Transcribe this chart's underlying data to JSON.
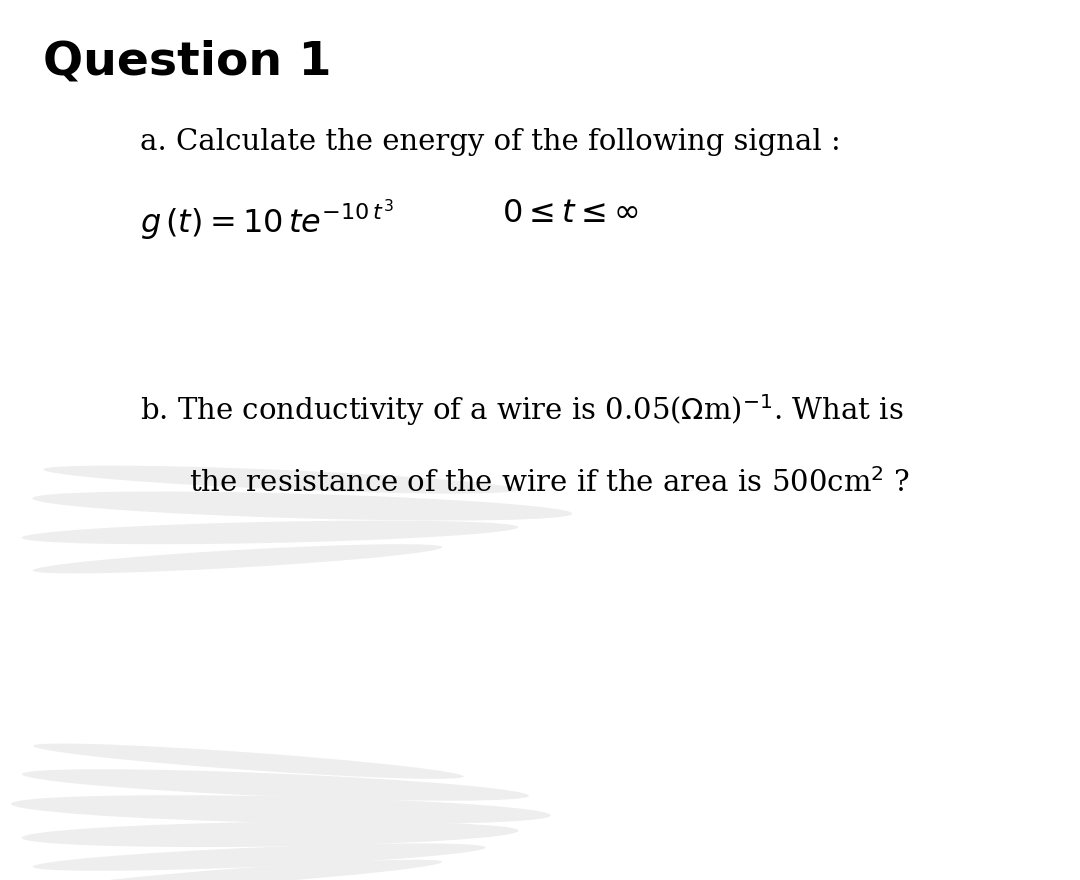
{
  "title": "Question 1",
  "part_a_label": "a. Calculate the energy of the following signal :",
  "part_b_line1": "b. The conductivity of a wire is 0.05(Ωm)⁻¹. What is",
  "part_b_line2": "the resistance of the wire if the area is 500cm² ?",
  "bg_color": "#ffffff",
  "text_color": "#000000",
  "smear_color": "#eeeeee",
  "title_fontsize": 34,
  "label_fontsize": 21,
  "smear1_strokes": [
    [
      0.04,
      0.455,
      0.44,
      0.022,
      -3.0
    ],
    [
      0.03,
      0.425,
      0.5,
      0.028,
      -2.0
    ],
    [
      0.02,
      0.395,
      0.46,
      0.024,
      1.5
    ],
    [
      0.03,
      0.365,
      0.38,
      0.02,
      4.0
    ]
  ],
  "smear2_strokes": [
    [
      0.03,
      0.135,
      0.4,
      0.02,
      -5.0
    ],
    [
      0.02,
      0.108,
      0.47,
      0.026,
      -3.0
    ],
    [
      0.01,
      0.08,
      0.5,
      0.03,
      -1.5
    ],
    [
      0.02,
      0.052,
      0.46,
      0.028,
      1.0
    ],
    [
      0.03,
      0.026,
      0.42,
      0.022,
      3.0
    ],
    [
      0.05,
      0.005,
      0.36,
      0.018,
      5.0
    ]
  ]
}
